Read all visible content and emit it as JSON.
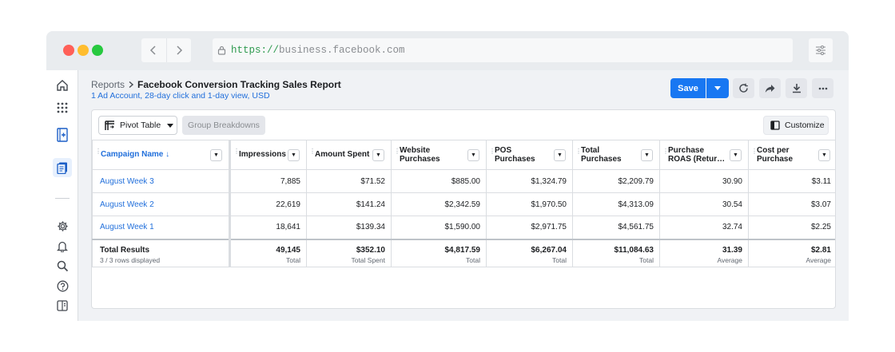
{
  "browser": {
    "url_protocol": "https://",
    "url_host": "business.facebook.com"
  },
  "sidebar": {
    "icons": [
      "home-icon",
      "apps-grid-icon",
      "catalog-icon",
      "reports-icon",
      "settings-icon",
      "bell-icon",
      "search-icon",
      "help-icon",
      "panel-icon"
    ]
  },
  "header": {
    "breadcrumb_root": "Reports",
    "title": "Facebook Conversion Tracking Sales Report",
    "subtitle": "1 Ad Account, 28-day click and 1-day view, USD",
    "save_label": "Save"
  },
  "toolbar": {
    "pivot_label": "Pivot Table",
    "group_label": "Group Breakdowns",
    "customize_label": "Customize"
  },
  "table": {
    "columns": [
      "Campaign Name ↓",
      "Impressions",
      "Amount Spent",
      "Website Purchases",
      "POS Purchases",
      "Total Purchases",
      "Purchase ROAS (Retur…",
      "Cost per Purchase"
    ],
    "rows": [
      [
        "August Week 3",
        "7,885",
        "$71.52",
        "$885.00",
        "$1,324.79",
        "$2,209.79",
        "30.90",
        "$3.11"
      ],
      [
        "August Week 2",
        "22,619",
        "$141.24",
        "$2,342.59",
        "$1,970.50",
        "$4,313.09",
        "30.54",
        "$3.07"
      ],
      [
        "August Week 1",
        "18,641",
        "$139.34",
        "$1,590.00",
        "$2,971.75",
        "$4,561.75",
        "32.74",
        "$2.25"
      ]
    ],
    "totals": {
      "label": "Total Results",
      "sublabel": "3 / 3 rows displayed",
      "values": [
        "49,145",
        "$352.10",
        "$4,817.59",
        "$6,267.04",
        "$11,084.63",
        "31.39",
        "$2.81"
      ],
      "captions": [
        "Total",
        "Total Spent",
        "Total",
        "Total",
        "Total",
        "Average",
        "Average"
      ]
    }
  },
  "colors": {
    "accent": "#1877f2",
    "link": "#216fdb"
  }
}
